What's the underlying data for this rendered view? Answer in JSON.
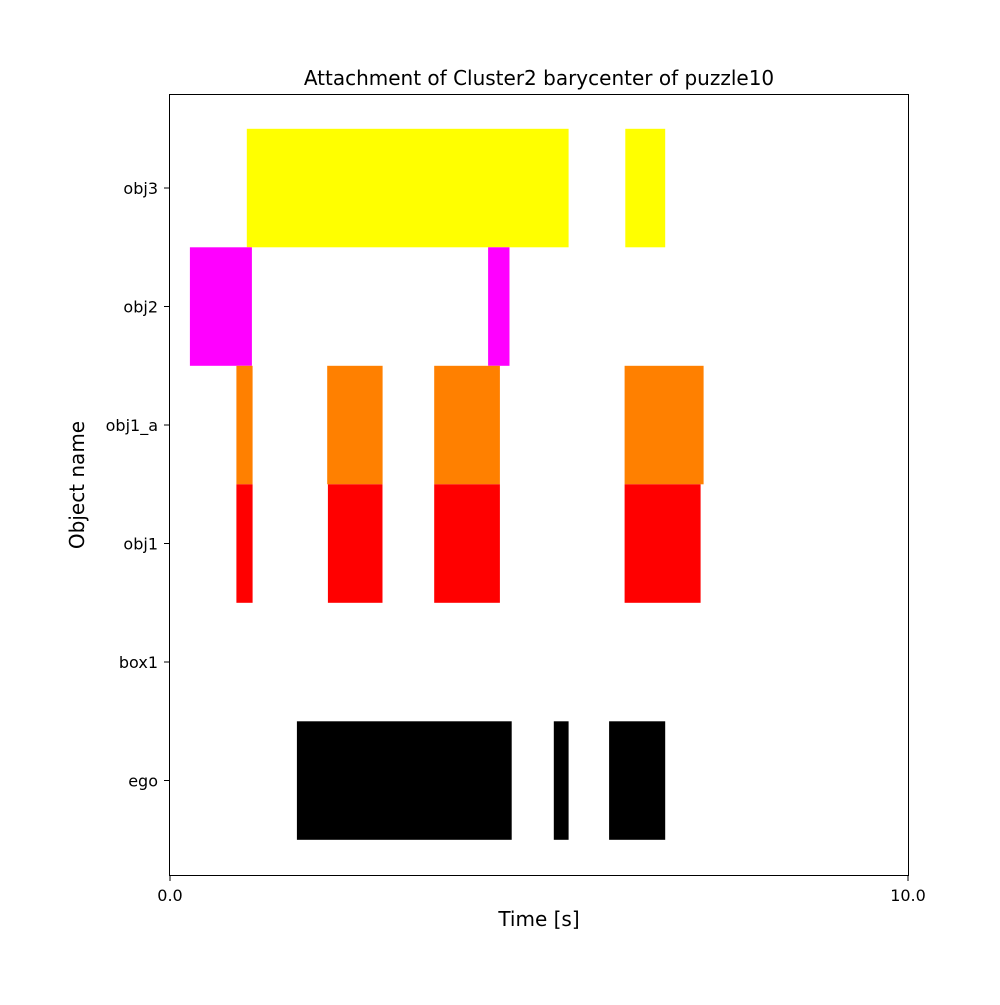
{
  "chart_data": {
    "type": "broken-barh",
    "title": "Attachment of Cluster2 barycenter of puzzle10",
    "xlabel": "Time [s]",
    "ylabel": "Object name",
    "xlim": [
      0.0,
      10.0
    ],
    "x_ticks": [
      "0.0",
      "10.0"
    ],
    "categories": [
      "obj3",
      "obj2",
      "obj1_a",
      "obj1",
      "box1",
      "ego"
    ],
    "grid": false,
    "series": [
      {
        "category": "obj3",
        "color": "#ffff00",
        "intervals": [
          [
            1.04,
            5.4
          ],
          [
            6.17,
            6.71
          ]
        ]
      },
      {
        "category": "obj2",
        "color": "#ff00ff",
        "intervals": [
          [
            0.27,
            1.11
          ],
          [
            4.31,
            4.6
          ]
        ]
      },
      {
        "category": "obj1_a",
        "color": "#ff8000",
        "intervals": [
          [
            0.9,
            1.12
          ],
          [
            2.13,
            2.88
          ],
          [
            3.58,
            4.47
          ],
          [
            6.16,
            7.23
          ]
        ]
      },
      {
        "category": "obj1",
        "color": "#ff0000",
        "intervals": [
          [
            0.9,
            1.12
          ],
          [
            2.14,
            2.88
          ],
          [
            3.58,
            4.47
          ],
          [
            6.16,
            7.19
          ]
        ]
      },
      {
        "category": "box1",
        "color": "#000000",
        "intervals": []
      },
      {
        "category": "ego",
        "color": "#000000",
        "intervals": [
          [
            1.72,
            4.63
          ],
          [
            5.2,
            5.4
          ],
          [
            5.95,
            6.71
          ]
        ]
      }
    ]
  }
}
